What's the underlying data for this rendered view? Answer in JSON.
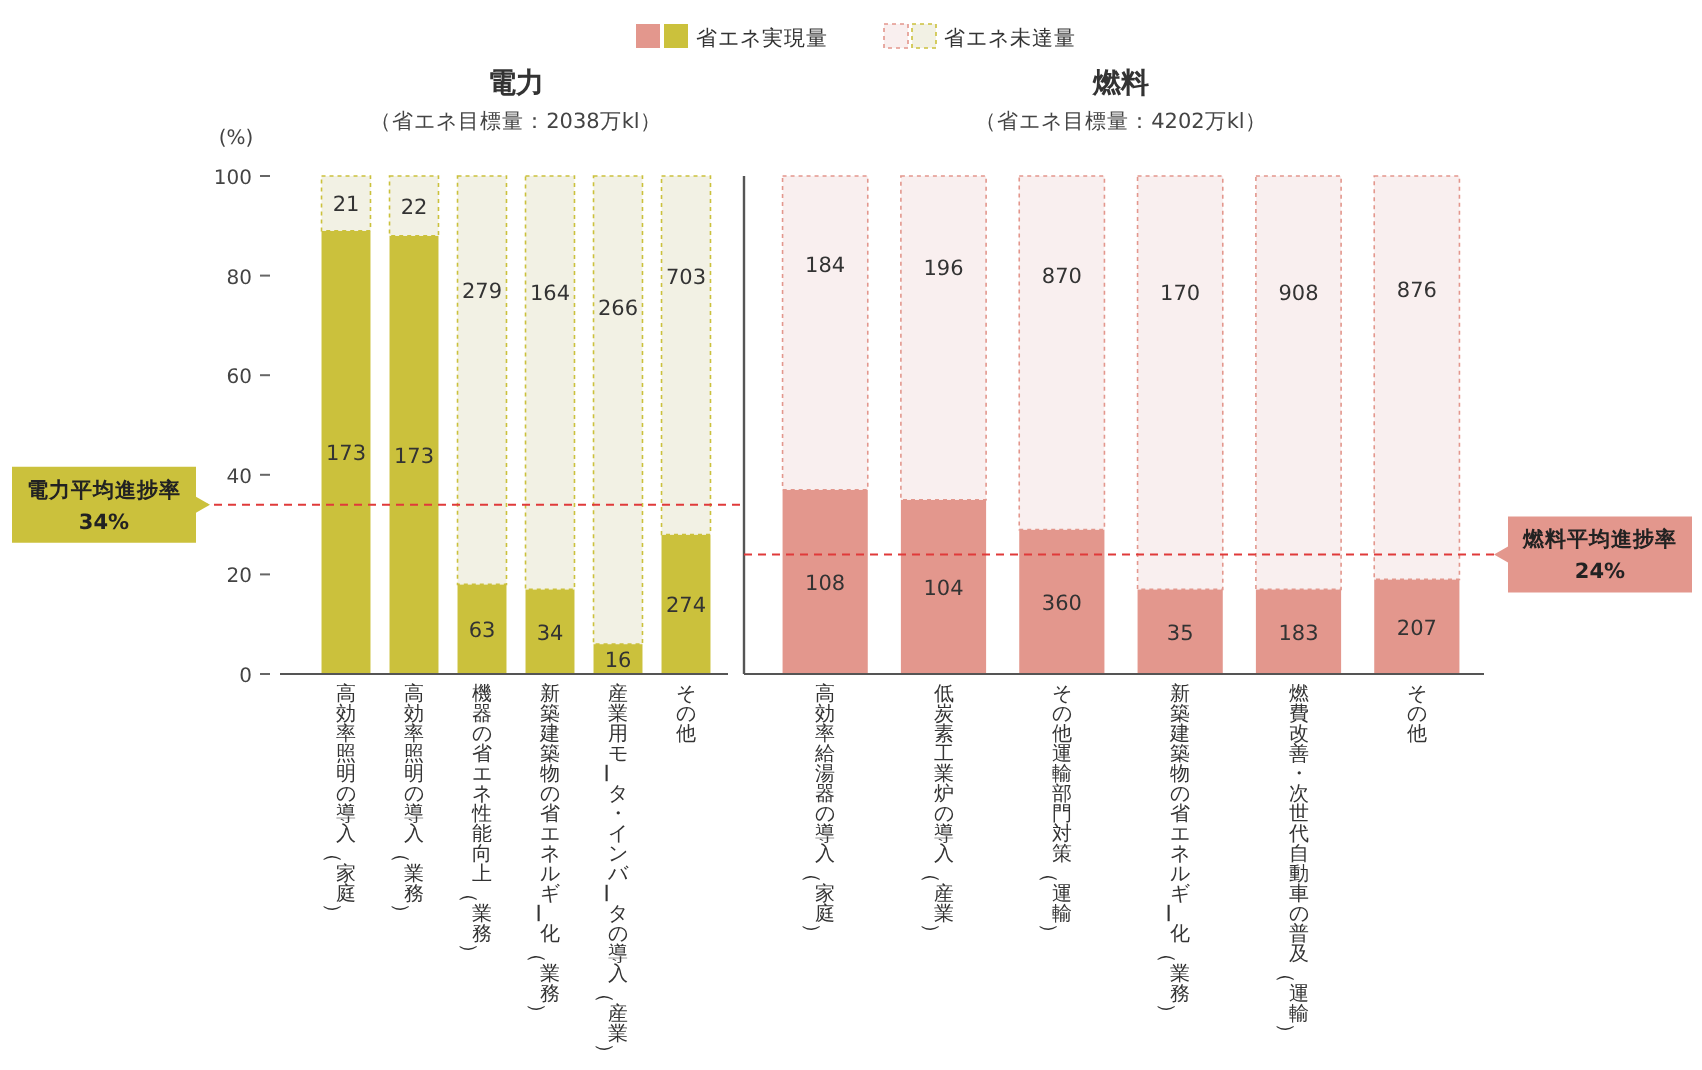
{
  "chart_data": [
    {
      "type": "bar",
      "stacked": true,
      "title": "電力",
      "subtitle": "（省エネ目標量：2038万kl）",
      "ylabel": "(%)",
      "legend": "top",
      "categories": [
        "高効率照明の導入（家庭）",
        "高効率照明の導入（業務）",
        "機器の省エネ性能向上（業務）",
        "新築建築物の省エネルギー化（業務）",
        "産業用モータ・インバータの導入（産業）",
        "その他"
      ],
      "series": [
        {
          "name": "省エネ実現量",
          "color": "#cbc13c",
          "values": [
            89,
            88,
            18,
            17,
            6,
            28
          ]
        },
        {
          "name": "省エネ未達量",
          "color": "#f2f1e4",
          "values": [
            11,
            12,
            82,
            83,
            94,
            72
          ]
        }
      ],
      "ylim": [
        0,
        100
      ],
      "yticks": [
        0,
        20,
        40,
        60,
        80,
        100
      ],
      "annotations": [
        "173",
        "173",
        "63",
        "34",
        "16",
        "274",
        "21",
        "22",
        "279",
        "164",
        "266",
        "703"
      ],
      "ref_lines": [
        {
          "axis": "y",
          "value": 34,
          "label": "電力平均進捗率\n34%",
          "color": "#e03a3a",
          "line_style": "dashed"
        }
      ]
    },
    {
      "type": "bar",
      "stacked": true,
      "title": "燃料",
      "subtitle": "（省エネ目標量：4202万kl）",
      "categories": [
        "高効率給湯器の導入（家庭）",
        "低炭素工業炉の導入（産業）",
        "その他運輸部門対策（運輸）",
        "新築建築物の省エネルギー化（業務）",
        "燃費改善・次世代自動車の普及（運輸）",
        "その他"
      ],
      "series": [
        {
          "color": "#e3978d",
          "values": [
            37,
            35,
            29,
            17,
            17,
            19
          ]
        },
        {
          "color": "#f9efef",
          "values": [
            63,
            65,
            71,
            83,
            83,
            81
          ]
        }
      ],
      "ylim": [
        0,
        100
      ],
      "annotations": [
        "108",
        "104",
        "360",
        "35",
        "183",
        "207",
        "184",
        "196",
        "870",
        "170",
        "908",
        "876"
      ],
      "ref_lines": [
        {
          "axis": "y",
          "value": 24,
          "label": "燃料平均進捗率\n24%",
          "color": "#e03a3a",
          "line_style": "dashed"
        }
      ]
    }
  ]
}
